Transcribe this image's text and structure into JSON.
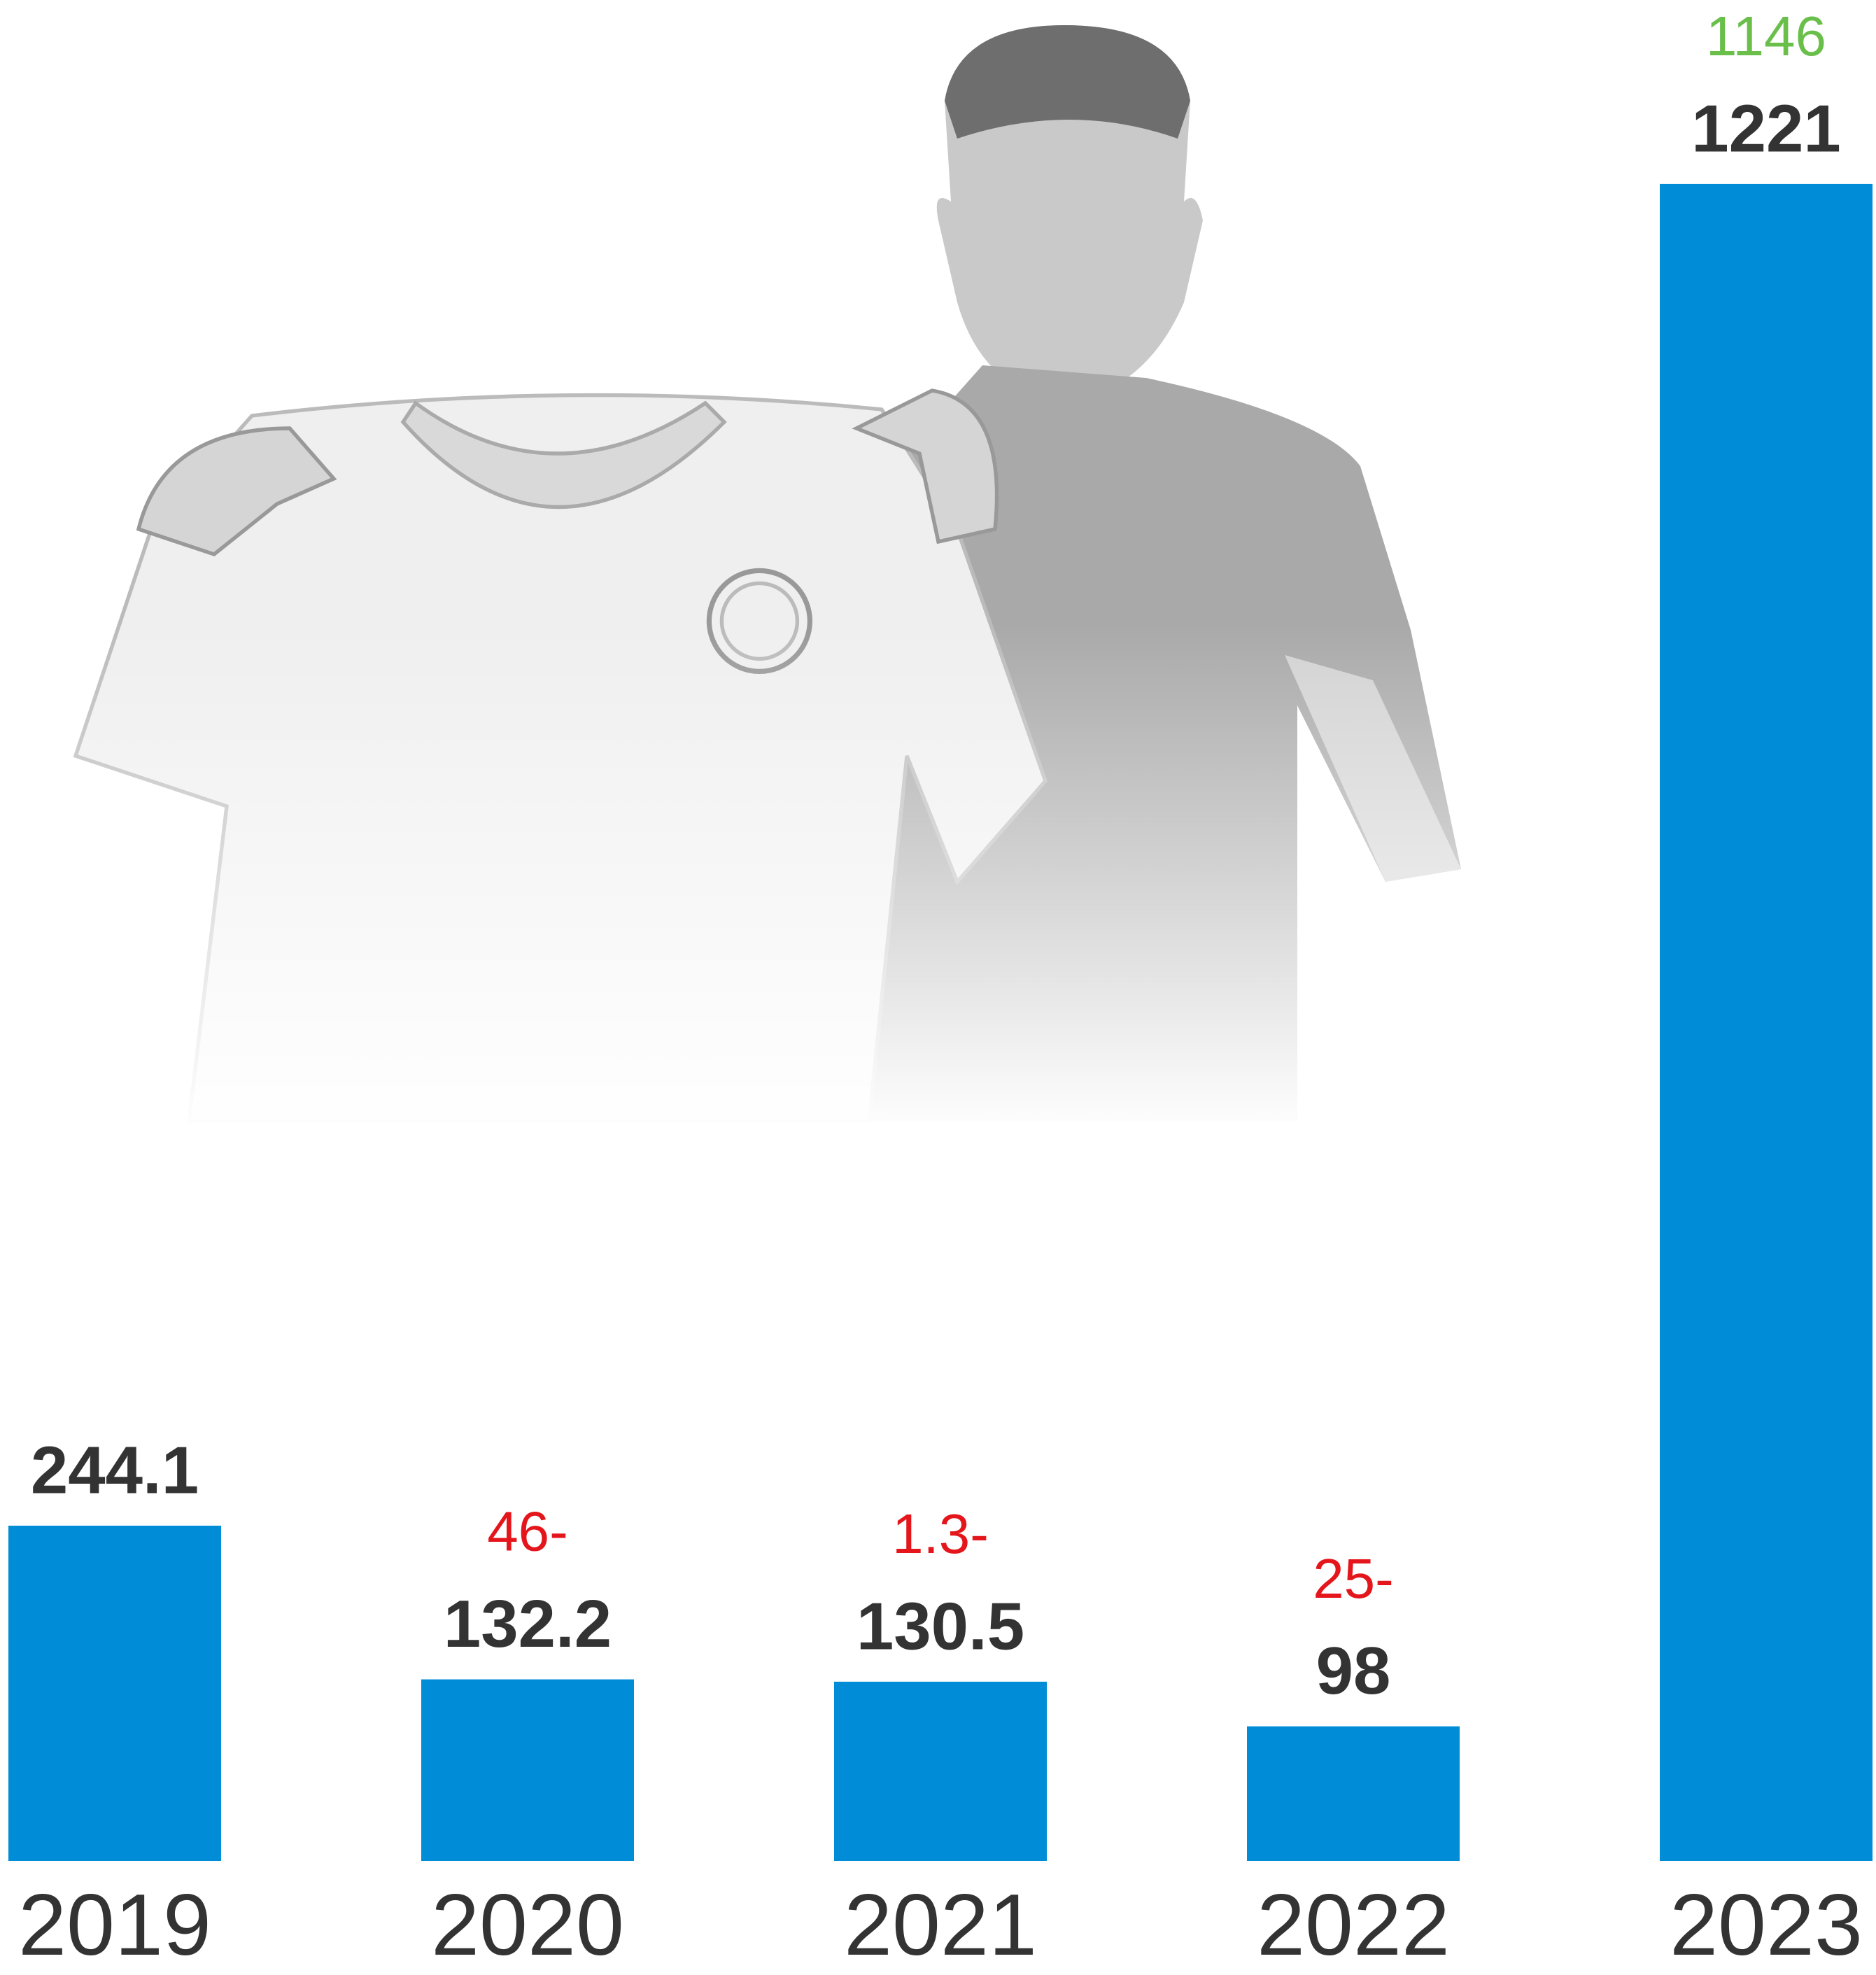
{
  "chart_data": {
    "type": "bar",
    "categories": [
      "2019",
      "2020",
      "2021",
      "2022",
      "2023"
    ],
    "values": [
      244.1,
      132.2,
      130.5,
      98,
      1221
    ],
    "color": "#008cd6",
    "ylim": [
      0,
      1250
    ],
    "change_labels": [
      null,
      "46-",
      "1.3-",
      "25-",
      "1146"
    ],
    "change_colors": [
      null,
      "#e4161b",
      "#e4161b",
      "#e4161b",
      "#6abf4b"
    ]
  }
}
